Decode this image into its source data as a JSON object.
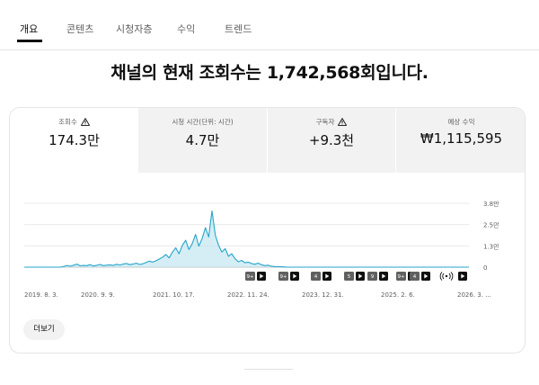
{
  "tabs": [
    {
      "label": "개요",
      "active": true
    },
    {
      "label": "콘텐츠"
    },
    {
      "label": "시청자층"
    },
    {
      "label": "수익"
    },
    {
      "label": "트렌드"
    }
  ],
  "headline": "채널의 현재 조회수는 1,742,568회입니다.",
  "metrics": [
    {
      "label": "조회수",
      "value": "174.3만",
      "warning": true,
      "selected": true
    },
    {
      "label": "시청 시간(단위: 시간)",
      "value": "4.7만",
      "warning": false
    },
    {
      "label": "구독자",
      "value": "+9.3천",
      "warning": true
    },
    {
      "label": "예상 수익",
      "value": "₩1,115,595",
      "warning": false
    }
  ],
  "more_button": "더보기",
  "colors": {
    "line": "#26a5c9",
    "fill": "#b9e2ee",
    "gridline": "#e5e5e5",
    "axis": "#c6c6c6"
  },
  "markers": [
    {
      "label": "9+"
    },
    {
      "label": "9+"
    },
    {
      "label": "4"
    },
    {
      "label": "5"
    },
    {
      "label": "9"
    },
    {
      "label": "9+"
    },
    {
      "label": "4"
    }
  ],
  "marker_icons": [
    "play-icon",
    "broadcast-icon"
  ],
  "chart_data": {
    "type": "area",
    "xlabel": "",
    "ylabel": "",
    "x_ticks": [
      "2019. 8. 3.",
      "2020. 9. 9.",
      "2021. 10. 17.",
      "2022. 11. 24.",
      "2023. 12. 31.",
      "2025. 2. 6.",
      "2026. 3. ..."
    ],
    "y_ticks": [
      "0",
      "1.3만",
      "2.5만",
      "3.8만"
    ],
    "ylim": [
      0,
      38000
    ],
    "grid": true,
    "x_start": "2019-08-03",
    "series": [
      {
        "values": [
          0,
          0,
          0,
          0,
          0,
          0,
          0,
          0,
          0,
          0,
          0,
          0,
          500,
          1000,
          600,
          1200,
          1800,
          800,
          1000,
          900,
          1500,
          700,
          1100,
          1600,
          900,
          1200,
          1400,
          1000,
          1700,
          1300,
          1800,
          2200,
          1500,
          1800,
          2400,
          1600,
          2000,
          2800,
          3600,
          3000,
          3800,
          4800,
          6000,
          7500,
          5500,
          9000,
          11500,
          8000,
          13000,
          16000,
          10500,
          14000,
          19500,
          12500,
          17000,
          23500,
          18000,
          33500,
          19000,
          13000,
          9000,
          11000,
          6500,
          8000,
          5000,
          3200,
          4000,
          2600,
          3000,
          2200,
          1700,
          2400,
          1500,
          900,
          1200,
          600,
          400,
          300,
          200,
          100,
          0,
          0,
          0,
          0,
          0,
          0,
          0,
          0,
          0,
          0,
          0,
          0,
          0,
          0,
          0,
          0,
          0,
          0,
          0,
          0,
          0,
          0,
          0,
          0,
          0,
          0,
          0,
          0,
          0,
          0,
          0,
          0,
          0,
          0,
          0,
          0,
          0,
          0,
          0,
          0,
          0,
          0,
          0,
          0,
          0,
          0,
          0,
          0,
          0,
          0,
          0,
          0,
          0,
          0,
          0,
          0
        ]
      }
    ]
  }
}
